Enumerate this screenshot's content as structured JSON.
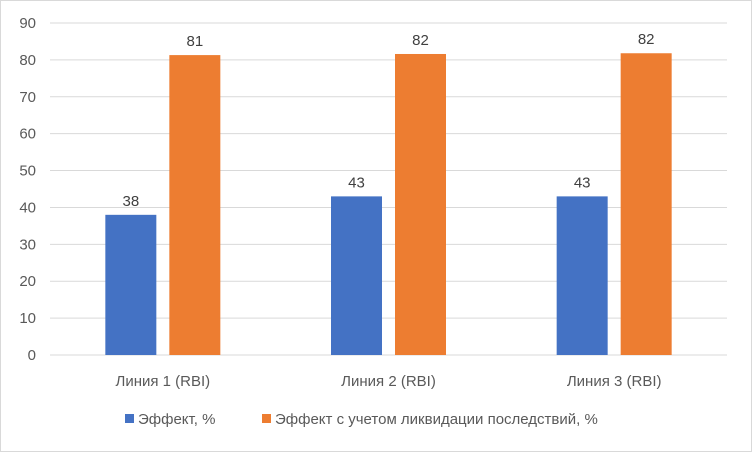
{
  "chart_data": {
    "type": "bar",
    "categories": [
      "Линия 1 (RBI)",
      "Линия 2 (RBI)",
      "Линия 3 (RBI)"
    ],
    "series": [
      {
        "name": "Эффект, %",
        "values": [
          38,
          43,
          43
        ],
        "labels": [
          "38",
          "43",
          "43"
        ],
        "color": "#4472c4"
      },
      {
        "name": "Эффект с учетом ликвидации последствий, %",
        "values": [
          81.3,
          81.6,
          81.8
        ],
        "labels": [
          "81",
          "82",
          "82"
        ],
        "color": "#ed7d31"
      }
    ],
    "ylim": [
      0,
      90
    ],
    "yticks": [
      "0",
      "10",
      "20",
      "30",
      "40",
      "50",
      "60",
      "70",
      "80",
      "90"
    ],
    "grid": true,
    "legend": "bottom"
  }
}
